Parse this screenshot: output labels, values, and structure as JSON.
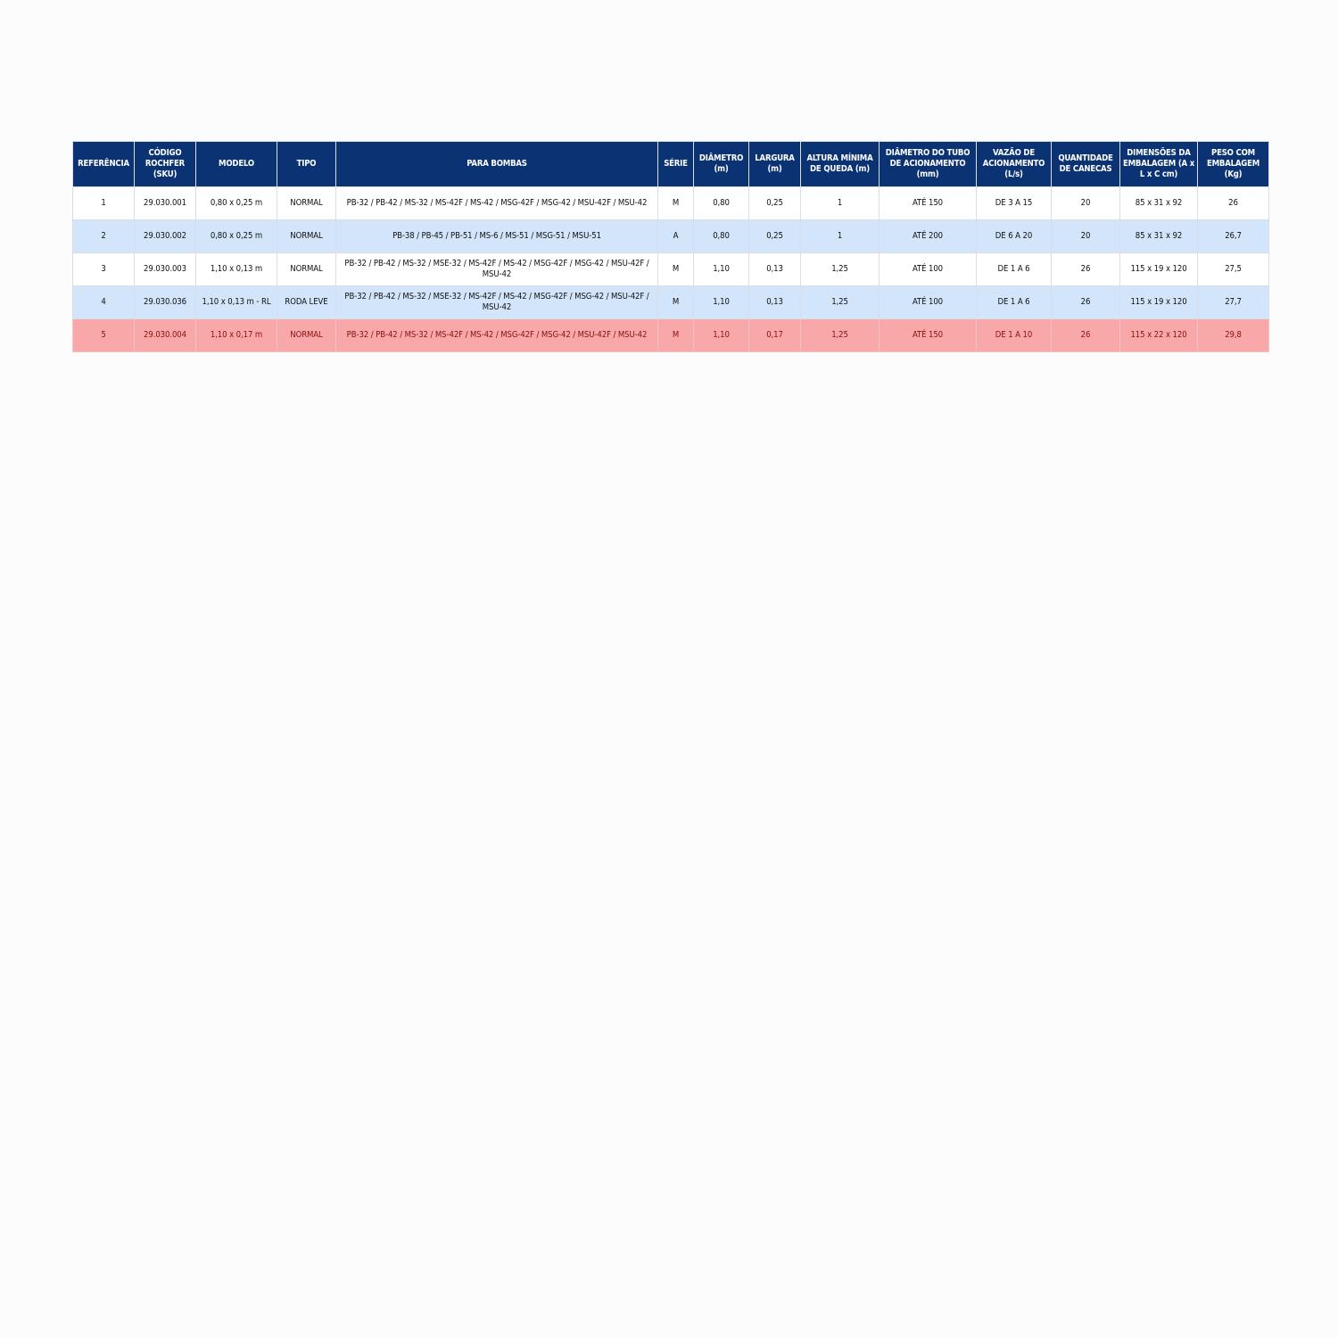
{
  "colors": {
    "header_bg": "#0b3374",
    "alt_row": "#d3e5fb",
    "highlight_row": "#f8a8a8",
    "highlight_text": "#8a1010"
  },
  "table": {
    "headers": [
      "REFERÊNCIA",
      "CÓDIGO ROCHFER (SKU)",
      "MODELO",
      "TIPO",
      "PARA BOMBAS",
      "SÉRIE",
      "DIÂMETRO (m)",
      "LARGURA (m)",
      "ALTURA MÍNIMA DE QUEDA (m)",
      "DIÂMETRO DO TUBO DE ACIONAMENTO (mm)",
      "VAZÃO DE ACIONAMENTO (L/s)",
      "QUANTIDADE DE CANECAS",
      "DIMENSÕES DA EMBALAGEM (A x L x C cm)",
      "PESO COM EMBALAGEM (Kg)"
    ],
    "rows": [
      {
        "style": "plain",
        "cells": [
          "1",
          "29.030.001",
          "0,80 x 0,25 m",
          "NORMAL",
          "PB-32 / PB-42 / MS-32 / MS-42F / MS-42 / MSG-42F / MSG-42 / MSU-42F / MSU-42",
          "M",
          "0,80",
          "0,25",
          "1",
          "ATÉ 150",
          "DE 3 A 15",
          "20",
          "85 x 31 x 92",
          "26"
        ]
      },
      {
        "style": "alt",
        "cells": [
          "2",
          "29.030.002",
          "0,80 x 0,25 m",
          "NORMAL",
          "PB-38 / PB-45 / PB-51 / MS-6 / MS-51 / MSG-51 / MSU-51",
          "A",
          "0,80",
          "0,25",
          "1",
          "ATÉ 200",
          "DE 6 A 20",
          "20",
          "85 x 31 x 92",
          "26,7"
        ]
      },
      {
        "style": "plain",
        "cells": [
          "3",
          "29.030.003",
          "1,10 x 0,13 m",
          "NORMAL",
          "PB-32 / PB-42 / MS-32 / MSE-32 / MS-42F / MS-42 / MSG-42F / MSG-42 / MSU-42F / MSU-42",
          "M",
          "1,10",
          "0,13",
          "1,25",
          "ATÉ 100",
          "DE 1 A 6",
          "26",
          "115 x 19 x 120",
          "27,5"
        ]
      },
      {
        "style": "alt",
        "cells": [
          "4",
          "29.030.036",
          "1,10 x 0,13 m - RL",
          "RODA LEVE",
          "PB-32 / PB-42 / MS-32 / MSE-32 / MS-42F / MS-42 / MSG-42F / MSG-42 / MSU-42F / MSU-42",
          "M",
          "1,10",
          "0,13",
          "1,25",
          "ATÉ 100",
          "DE 1 A 6",
          "26",
          "115 x 19 x 120",
          "27,7"
        ]
      },
      {
        "style": "hl",
        "cells": [
          "5",
          "29.030.004",
          "1,10 x 0,17 m",
          "NORMAL",
          "PB-32 / PB-42 / MS-32 / MS-42F / MS-42 / MSG-42F / MSG-42 / MSU-42F / MSU-42",
          "M",
          "1,10",
          "0,17",
          "1,25",
          "ATÉ 150",
          "DE 1 A 10",
          "26",
          "115 x 22 x 120",
          "29,8"
        ]
      }
    ]
  }
}
